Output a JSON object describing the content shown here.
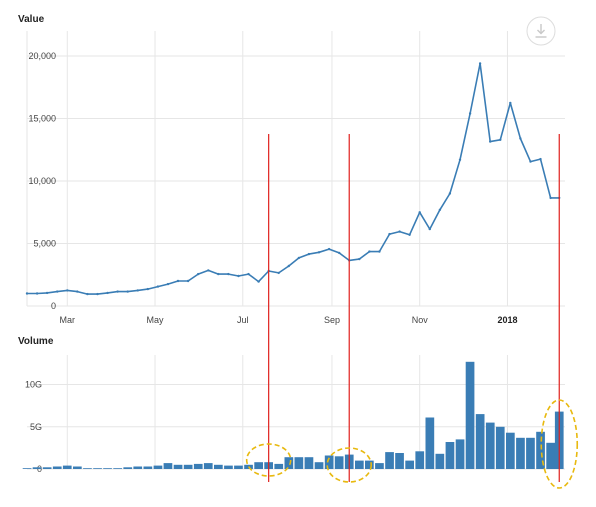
{
  "chart_data": [
    {
      "type": "line",
      "title": "Value",
      "x_ticks": [
        "Mar",
        "May",
        "Jul",
        "Sep",
        "Nov",
        "2018"
      ],
      "y_ticks": [
        "0",
        "5,000",
        "10,000",
        "15,000",
        "20,000"
      ],
      "ylim": [
        0,
        22000
      ],
      "grid": true,
      "series": [
        {
          "color": "#3a7db5",
          "x": [
            "2017-02-01",
            "2017-02-08",
            "2017-02-15",
            "2017-02-22",
            "2017-03-01",
            "2017-03-08",
            "2017-03-15",
            "2017-03-22",
            "2017-03-29",
            "2017-04-05",
            "2017-04-12",
            "2017-04-19",
            "2017-04-26",
            "2017-05-03",
            "2017-05-10",
            "2017-05-17",
            "2017-05-24",
            "2017-05-31",
            "2017-06-07",
            "2017-06-14",
            "2017-06-21",
            "2017-06-28",
            "2017-07-05",
            "2017-07-12",
            "2017-07-19",
            "2017-07-26",
            "2017-08-02",
            "2017-08-09",
            "2017-08-16",
            "2017-08-23",
            "2017-08-30",
            "2017-09-06",
            "2017-09-13",
            "2017-09-20",
            "2017-09-27",
            "2017-10-04",
            "2017-10-11",
            "2017-10-18",
            "2017-10-25",
            "2017-11-01",
            "2017-11-08",
            "2017-11-15",
            "2017-11-22",
            "2017-11-29",
            "2017-12-06",
            "2017-12-13",
            "2017-12-20",
            "2017-12-27",
            "2018-01-03",
            "2018-01-10",
            "2018-01-17",
            "2018-01-24",
            "2018-01-31",
            "2018-02-06"
          ],
          "values": [
            1000,
            1000,
            1050,
            1150,
            1250,
            1150,
            950,
            950,
            1050,
            1150,
            1150,
            1250,
            1350,
            1550,
            1750,
            2000,
            2000,
            2550,
            2850,
            2550,
            2550,
            2400,
            2550,
            1950,
            2800,
            2650,
            3200,
            3850,
            4150,
            4300,
            4550,
            4250,
            3650,
            3750,
            4350,
            4350,
            5750,
            5950,
            5700,
            7500,
            6150,
            7700,
            9000,
            11700,
            15400,
            19400,
            13150,
            13300,
            16250,
            13400,
            11550,
            11750,
            8650,
            8650
          ]
        }
      ]
    },
    {
      "type": "bar",
      "title": "Volume",
      "y_ticks": [
        "0",
        "5G",
        "10G"
      ],
      "ylim": [
        0,
        13500000000
      ],
      "grid": true,
      "series": [
        {
          "color": "#3a7db5",
          "x": [
            "2017-02-01",
            "2017-02-08",
            "2017-02-15",
            "2017-02-22",
            "2017-03-01",
            "2017-03-08",
            "2017-03-15",
            "2017-03-22",
            "2017-03-29",
            "2017-04-05",
            "2017-04-12",
            "2017-04-19",
            "2017-04-26",
            "2017-05-03",
            "2017-05-10",
            "2017-05-17",
            "2017-05-24",
            "2017-05-31",
            "2017-06-07",
            "2017-06-14",
            "2017-06-21",
            "2017-06-28",
            "2017-07-05",
            "2017-07-12",
            "2017-07-19",
            "2017-07-26",
            "2017-08-02",
            "2017-08-09",
            "2017-08-16",
            "2017-08-23",
            "2017-08-30",
            "2017-09-06",
            "2017-09-13",
            "2017-09-20",
            "2017-09-27",
            "2017-10-04",
            "2017-10-11",
            "2017-10-18",
            "2017-10-25",
            "2017-11-01",
            "2017-11-08",
            "2017-11-15",
            "2017-11-22",
            "2017-11-29",
            "2017-12-06",
            "2017-12-13",
            "2017-12-20",
            "2017-12-27",
            "2018-01-03",
            "2018-01-10",
            "2018-01-17",
            "2018-01-24",
            "2018-01-31",
            "2018-02-06"
          ],
          "values": [
            100000000,
            200000000,
            200000000,
            300000000,
            400000000,
            300000000,
            100000000,
            100000000,
            100000000,
            100000000,
            200000000,
            300000000,
            300000000,
            400000000,
            700000000,
            500000000,
            500000000,
            600000000,
            700000000,
            500000000,
            400000000,
            400000000,
            500000000,
            800000000,
            800000000,
            600000000,
            1400000000,
            1400000000,
            1400000000,
            800000000,
            1600000000,
            1500000000,
            1700000000,
            1000000000,
            1000000000,
            700000000,
            2000000000,
            1900000000,
            1000000000,
            2100000000,
            6100000000,
            1800000000,
            3200000000,
            3500000000,
            12700000000,
            6500000000,
            5500000000,
            5000000000,
            4300000000,
            3700000000,
            3700000000,
            4400000000,
            3100000000,
            6800000000
          ]
        }
      ]
    }
  ],
  "ui": {
    "download_icon": "download-icon"
  },
  "annotations": {
    "vertical_line_color": "#e0201c",
    "ellipse_color": "#e8b90f",
    "vertical_lines_at": [
      "2017-07-19",
      "2017-09-13",
      "2018-02-06"
    ],
    "ellipses_around": [
      "2017-07-19",
      "2017-09-13",
      "2018-02-06"
    ]
  }
}
